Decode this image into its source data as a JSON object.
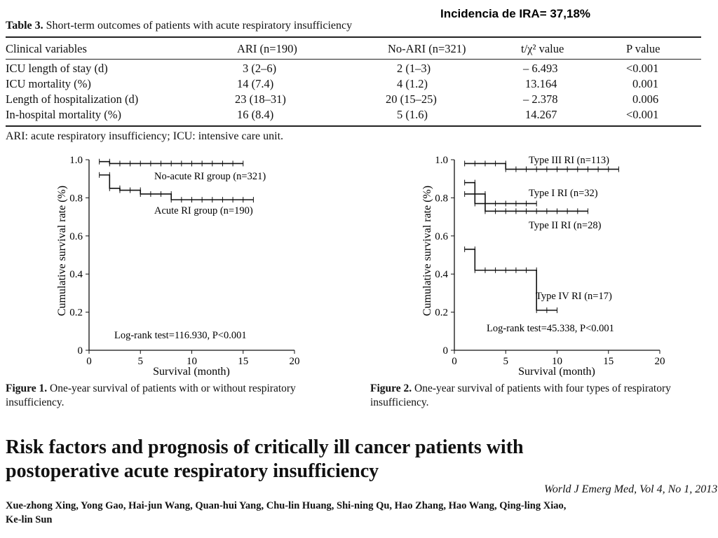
{
  "banner": "Incidencia de IRA= 37,18%",
  "table": {
    "label": "Table 3.",
    "title": " Short-term outcomes of patients with acute respiratory insufficiency",
    "headers": [
      "Clinical variables",
      "ARI (n=190)",
      "No-ARI (n=321)",
      "t/χ² value",
      "P value"
    ],
    "rows": [
      [
        "ICU length of stay (d)",
        "3 (2–6)",
        "2 (1–3)",
        "– 6.493",
        "<0.001"
      ],
      [
        "ICU mortality (%)",
        "14 (7.4)",
        "4 (1.2)",
        "13.164",
        "0.001"
      ],
      [
        "Length of hospitalization (d)",
        "23 (18–31)",
        "20 (15–25)",
        "– 2.378",
        "0.006"
      ],
      [
        "In-hospital mortality (%)",
        "16 (8.4)",
        "5 (1.6)",
        "14.267",
        "<0.001"
      ]
    ],
    "footnote": "ARI: acute respiratory insufficiency; ICU: intensive care unit."
  },
  "chart_data": [
    {
      "type": "line",
      "ylabel": "Cumulative survival rate (%)",
      "xlabel": "Survival (month)",
      "xlim": [
        0,
        20
      ],
      "ylim": [
        0,
        1.0
      ],
      "x_ticks": [
        "0",
        "5",
        "10",
        "15",
        "20"
      ],
      "y_ticks": [
        "0",
        "0.2",
        "0.4",
        "0.6",
        "0.8",
        "1.0"
      ],
      "annotation": "Log-rank test=116.930, P<0.001",
      "series": [
        {
          "name": "No-acute RI group (n=321)",
          "x": [
            1,
            2,
            2,
            15
          ],
          "y": [
            0.99,
            0.99,
            0.98,
            0.98
          ]
        },
        {
          "name": "Acute RI group (n=190)",
          "x": [
            1,
            2,
            2,
            3,
            3,
            5,
            5,
            8,
            8,
            16
          ],
          "y": [
            0.92,
            0.92,
            0.85,
            0.85,
            0.84,
            0.84,
            0.82,
            0.82,
            0.79,
            0.79
          ]
        }
      ]
    },
    {
      "type": "line",
      "ylabel": "Cumulative survival rate (%)",
      "xlabel": "Survival (month)",
      "xlim": [
        0,
        20
      ],
      "ylim": [
        0,
        1.0
      ],
      "x_ticks": [
        "0",
        "5",
        "10",
        "15",
        "20"
      ],
      "y_ticks": [
        "0",
        "0.2",
        "0.4",
        "0.6",
        "0.8",
        "1.0"
      ],
      "annotation": "Log-rank test=45.338, P<0.001",
      "series": [
        {
          "name": "Type III RI (n=113)",
          "x": [
            1,
            5,
            5,
            16
          ],
          "y": [
            0.98,
            0.98,
            0.95,
            0.95
          ]
        },
        {
          "name": "Type I RI (n=32)",
          "x": [
            1,
            2,
            2,
            8
          ],
          "y": [
            0.88,
            0.88,
            0.77,
            0.77
          ]
        },
        {
          "name": "Type II RI (n=28)",
          "x": [
            1,
            3,
            3,
            13
          ],
          "y": [
            0.82,
            0.82,
            0.73,
            0.73
          ]
        },
        {
          "name": "Type IV RI (n=17)",
          "x": [
            1,
            2,
            2,
            8,
            8,
            10
          ],
          "y": [
            0.53,
            0.53,
            0.42,
            0.42,
            0.21,
            0.21
          ]
        }
      ]
    }
  ],
  "figures": [
    {
      "label": "Figure 1.",
      "caption": " One-year survival of patients with or without respiratory insufficiency."
    },
    {
      "label": "Figure 2.",
      "caption": " One-year survival of patients with four types of respiratory insufficiency."
    }
  ],
  "paper": {
    "title": "Risk factors and prognosis of critically ill cancer patients with postoperative acute respiratory insufficiency",
    "journal": "World J Emerg Med, Vol 4, No 1, 2013",
    "authors": "Xue-zhong Xing, Yong Gao, Hai-jun Wang, Quan-hui Yang, Chu-lin Huang, Shi-ning Qu, Hao Zhang, Hao Wang, Qing-ling Xiao, Ke-lin Sun"
  }
}
